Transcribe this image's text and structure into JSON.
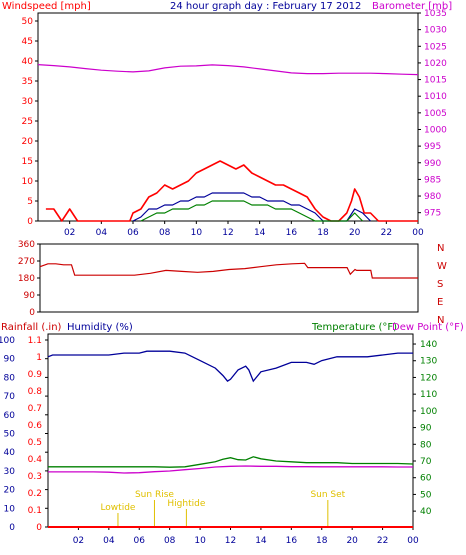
{
  "colors": {
    "wind": "#ff0000",
    "wind_avg": "#000099",
    "wind_low": "#008000",
    "barometer": "#cc00cc",
    "direction": "#cc0000",
    "rain": "#ff0000",
    "humidity": "#000099",
    "temperature": "#008000",
    "dewpoint": "#cc00cc",
    "events": "#e0c000",
    "axis": "#000000"
  },
  "chart_data": [
    {
      "type": "line",
      "title": "24 hour graph day : February 17 2012",
      "ylabel_left": "Windspeed [mph]",
      "ylabel_right": "Barometer [mb]",
      "x_ticks": [
        "02",
        "04",
        "06",
        "08",
        "10",
        "12",
        "14",
        "16",
        "18",
        "20",
        "22",
        "00"
      ],
      "y_left_ticks": [
        "0",
        "5",
        "10",
        "15",
        "20",
        "25",
        "30",
        "35",
        "40",
        "45",
        "50"
      ],
      "y_right_ticks": [
        "975",
        "980",
        "985",
        "990",
        "995",
        "1000",
        "1005",
        "1010",
        "1015",
        "1020",
        "1025",
        "1030",
        "1035"
      ],
      "xlim": [
        0,
        24
      ],
      "ylim_left": [
        0,
        50
      ],
      "ylim_right": [
        972.5,
        1035
      ],
      "series": [
        {
          "key": "wind_gust",
          "axis": "left",
          "color_key": "wind",
          "x": [
            0.5,
            1,
            1.5,
            2,
            2.5,
            3,
            3.5,
            4,
            4.5,
            5,
            5.5,
            5.8,
            6,
            6.5,
            7,
            7.5,
            8,
            8.5,
            9,
            9.5,
            10,
            10.5,
            11,
            11.5,
            12,
            12.5,
            13,
            13.5,
            14,
            14.5,
            15,
            15.5,
            16,
            16.5,
            17,
            17.5,
            18,
            18.5,
            19,
            19.5,
            19.8,
            20,
            20.3,
            20.6,
            21,
            21.5,
            22,
            23,
            24
          ],
          "y": [
            3,
            3,
            0,
            3,
            0,
            0,
            0,
            0,
            0,
            0,
            0,
            0,
            2,
            3,
            6,
            7,
            9,
            8,
            9,
            10,
            12,
            13,
            14,
            15,
            14,
            13,
            14,
            12,
            11,
            10,
            9,
            9,
            8,
            7,
            6,
            3,
            1,
            0,
            0,
            2,
            5,
            8,
            6,
            2,
            2,
            0,
            0,
            0,
            0
          ]
        },
        {
          "key": "wind_avg",
          "axis": "left",
          "color_key": "wind_avg",
          "x": [
            6,
            6.5,
            7,
            7.5,
            8,
            8.5,
            9,
            9.5,
            10,
            10.5,
            11,
            11.5,
            12,
            12.5,
            13,
            13.5,
            14,
            14.5,
            15,
            15.5,
            16,
            16.5,
            17,
            17.5,
            18,
            19.5,
            20,
            20.5,
            21
          ],
          "y": [
            0,
            1,
            3,
            3,
            4,
            4,
            5,
            5,
            6,
            6,
            7,
            7,
            7,
            7,
            7,
            6,
            6,
            5,
            5,
            5,
            4,
            4,
            3,
            2,
            0,
            0,
            3,
            2,
            0
          ]
        },
        {
          "key": "wind_low",
          "axis": "left",
          "color_key": "wind_low",
          "x": [
            6.5,
            7,
            7.5,
            8,
            8.5,
            9,
            9.5,
            10,
            10.5,
            11,
            11.5,
            12,
            12.5,
            13,
            13.5,
            14,
            14.5,
            15,
            15.5,
            16,
            16.5,
            17,
            17.5,
            19.5,
            20,
            20.5
          ],
          "y": [
            0,
            1,
            2,
            2,
            3,
            3,
            3,
            4,
            4,
            5,
            5,
            5,
            5,
            5,
            4,
            4,
            4,
            3,
            3,
            3,
            2,
            1,
            0,
            0,
            2,
            0
          ]
        },
        {
          "key": "barometer",
          "axis": "right",
          "color_key": "barometer",
          "x": [
            0,
            1,
            2,
            3,
            4,
            5,
            6,
            7,
            8,
            9,
            10,
            11,
            12,
            13,
            14,
            15,
            16,
            17,
            18,
            19,
            20,
            21,
            22,
            23,
            24
          ],
          "y": [
            1019.5,
            1019.2,
            1018.8,
            1018.3,
            1017.8,
            1017.5,
            1017.3,
            1017.6,
            1018.5,
            1019,
            1019.1,
            1019.4,
            1019.2,
            1018.8,
            1018.2,
            1017.6,
            1017,
            1016.8,
            1016.8,
            1016.9,
            1016.9,
            1016.9,
            1016.8,
            1016.6,
            1016.5
          ]
        }
      ]
    },
    {
      "type": "line",
      "ylabel_right": [
        "N",
        "W",
        "S",
        "E",
        "N"
      ],
      "y_ticks": [
        "0",
        "90",
        "180",
        "270",
        "360"
      ],
      "xlim": [
        0,
        24
      ],
      "ylim": [
        0,
        360
      ],
      "series": [
        {
          "key": "wind_direction",
          "color_key": "direction",
          "x": [
            0,
            0.5,
            1,
            1.5,
            2,
            2.2,
            3,
            4,
            5,
            6,
            7,
            8,
            9,
            10,
            11,
            12,
            13,
            14,
            15,
            16,
            16.8,
            17,
            18,
            19,
            19.5,
            19.7,
            20,
            20.1,
            21,
            21.1,
            22,
            23,
            24
          ],
          "y": [
            240,
            255,
            255,
            250,
            250,
            195,
            195,
            195,
            195,
            195,
            205,
            220,
            215,
            210,
            215,
            225,
            230,
            240,
            250,
            255,
            258,
            235,
            235,
            235,
            235,
            200,
            225,
            220,
            220,
            180,
            180,
            180,
            180
          ]
        }
      ]
    },
    {
      "type": "line",
      "ylabel_left": "Rainfall (.in)",
      "ylabel_left_2": "Humidity (%)",
      "ylabel_right": "Temperature (°F)",
      "ylabel_right_2": "Dew Point (°F)",
      "x_ticks": [
        "02",
        "04",
        "06",
        "08",
        "10",
        "12",
        "14",
        "16",
        "18",
        "20",
        "22",
        "00"
      ],
      "rain_ticks": [
        "0",
        "0.1",
        "0.2",
        "0.3",
        "0.4",
        "0.5",
        "0.6",
        "0.7",
        "0.8",
        "0.9",
        "1",
        "1.1"
      ],
      "humidity_ticks": [
        "0",
        "10",
        "20",
        "30",
        "40",
        "50",
        "60",
        "70",
        "80",
        "90",
        "100"
      ],
      "temp_ticks": [
        "40",
        "50",
        "60",
        "70",
        "80",
        "90",
        "100",
        "110",
        "120",
        "130",
        "140"
      ],
      "xlim": [
        0,
        24
      ],
      "ylim_humidity": [
        0,
        100
      ],
      "ylim_temp": [
        30.5,
        146
      ],
      "annotations": [
        {
          "label": "Lowtide",
          "x": 4.6
        },
        {
          "label": "Sun Rise",
          "x": 7.0
        },
        {
          "label": "Hightide",
          "x": 9.1
        },
        {
          "label": "Sun Set",
          "x": 18.4
        }
      ],
      "series": [
        {
          "key": "humidity",
          "axis": "humidity",
          "color_key": "humidity",
          "x": [
            0,
            0.3,
            1,
            2,
            3,
            4,
            5,
            6,
            6.5,
            7,
            8,
            9,
            10,
            11,
            11.5,
            11.8,
            12,
            12.5,
            13,
            13.2,
            13.5,
            14,
            15,
            16,
            17,
            17.5,
            18,
            19,
            20,
            21,
            22,
            23,
            24
          ],
          "y": [
            91,
            92,
            92,
            92,
            92,
            92,
            93,
            93,
            94,
            94,
            94,
            93,
            89,
            85,
            81,
            78,
            79,
            84,
            86,
            84,
            78,
            83,
            85,
            88,
            88,
            87,
            89,
            91,
            91,
            91,
            92,
            93,
            93
          ]
        },
        {
          "key": "temperature",
          "axis": "temp",
          "color_key": "temperature",
          "x": [
            0,
            1,
            2,
            3,
            4,
            5,
            6,
            7,
            8,
            9,
            10,
            11,
            11.5,
            12,
            12.5,
            13,
            13.5,
            14,
            15,
            16,
            17,
            18,
            19,
            20,
            21,
            22,
            23,
            24
          ],
          "y": [
            66.5,
            66.5,
            66.5,
            66.5,
            66.5,
            66.5,
            66.5,
            66.5,
            66.3,
            66.5,
            68,
            69.5,
            71,
            72,
            70.8,
            70.6,
            72.5,
            71.3,
            70,
            69.5,
            69,
            69,
            69,
            68.5,
            68.5,
            68.5,
            68.5,
            68.2
          ]
        },
        {
          "key": "dewpoint",
          "axis": "temp",
          "color_key": "dewpoint",
          "x": [
            0,
            1,
            2,
            3,
            4,
            5,
            6,
            7,
            8,
            9,
            10,
            11,
            12,
            13,
            14,
            15,
            16,
            17,
            18,
            19,
            20,
            21,
            22,
            23,
            24
          ],
          "y": [
            63.5,
            63.5,
            63.5,
            63.5,
            63.3,
            62.8,
            63,
            63.6,
            64,
            64.8,
            65.5,
            66.4,
            66.8,
            67,
            66.8,
            66.8,
            66.6,
            66.6,
            66.5,
            66.5,
            66.5,
            66.5,
            66.5,
            66.4,
            66.4
          ]
        },
        {
          "key": "rainfall",
          "axis": "humidity",
          "color_key": "rain",
          "x": [
            0,
            24
          ],
          "y": [
            0,
            0
          ]
        }
      ]
    }
  ]
}
